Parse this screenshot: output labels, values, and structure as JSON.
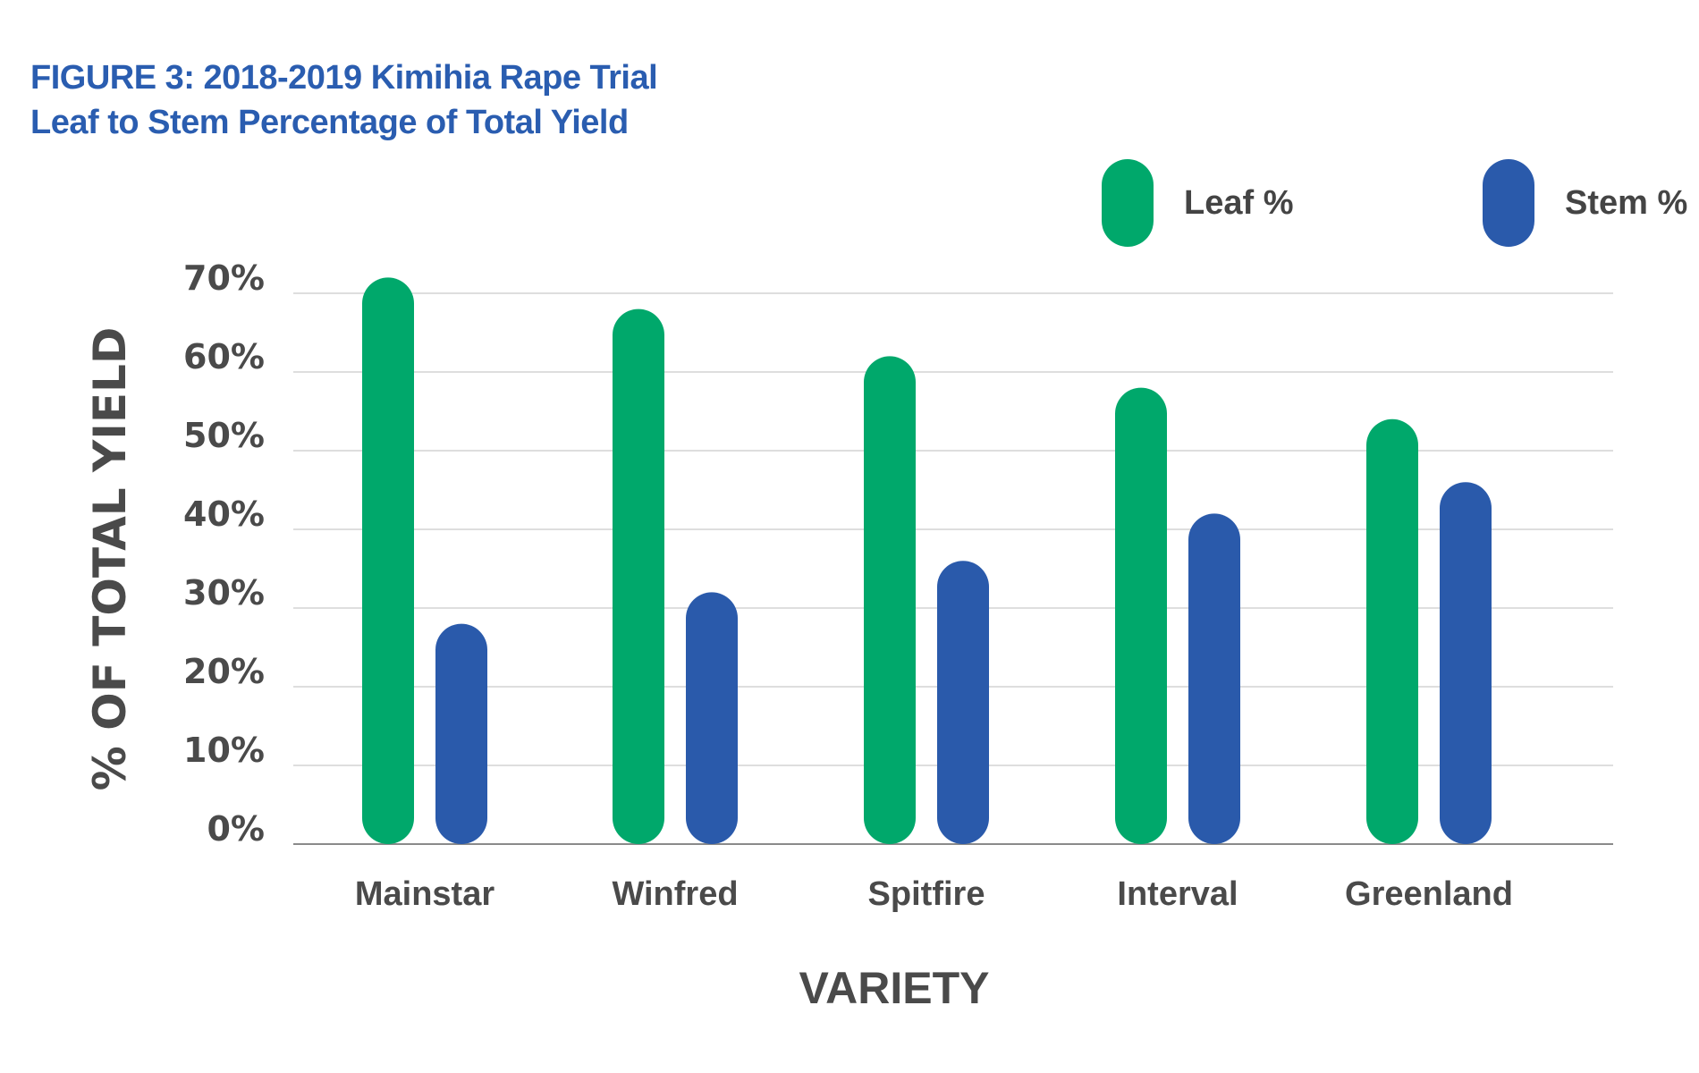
{
  "chart_data": {
    "type": "bar",
    "title": "FIGURE 3: 2018-2019 Kimihia Rape Trial",
    "subtitle": "Leaf to Stem Percentage of Total Yield",
    "xlabel": "VARIETY",
    "ylabel": "% OF TOTAL YIELD",
    "categories": [
      "Mainstar",
      "Winfred",
      "Spitfire",
      "Interval",
      "Greenland"
    ],
    "series": [
      {
        "name": "Leaf %",
        "color": "#00a86b",
        "values": [
          72,
          68,
          62,
          58,
          54
        ]
      },
      {
        "name": "Stem %",
        "color": "#2a5aab",
        "values": [
          28,
          32,
          36,
          42,
          46
        ]
      }
    ],
    "ylim": [
      0,
      70
    ],
    "yticks": [
      0,
      10,
      20,
      30,
      40,
      50,
      60,
      70
    ],
    "ytick_labels": [
      "0%",
      "10%",
      "20%",
      "30%",
      "40%",
      "50%",
      "60%",
      "70%"
    ],
    "grid": true,
    "legend": "top-right"
  }
}
